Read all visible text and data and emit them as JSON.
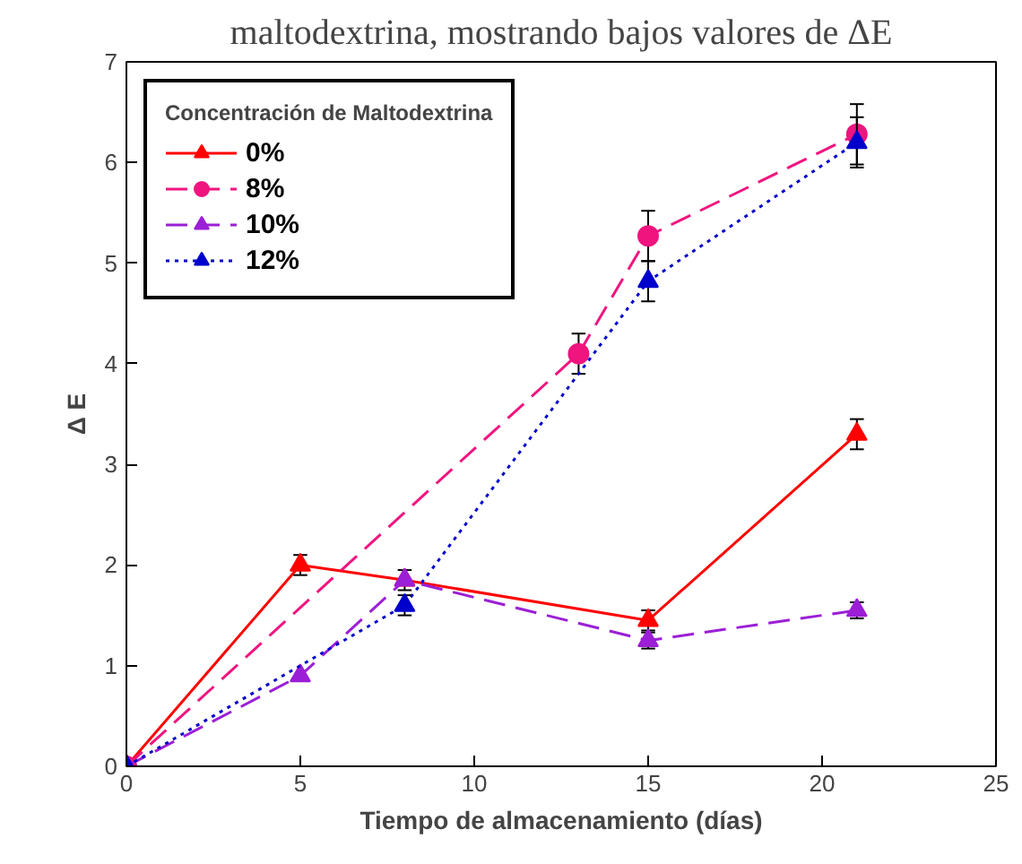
{
  "chart_data": {
    "type": "line",
    "xlabel": "Tiempo de almacenamiento (días)",
    "ylabel": "Δ E",
    "legend_title": "Concentración de Maltodextrina",
    "annotations": [
      "maltodextrina, mostrando bajos valores de ΔE"
    ],
    "xlim": [
      0,
      25
    ],
    "xticks": [
      0,
      5,
      10,
      15,
      20,
      25
    ],
    "ylim": [
      0,
      7
    ],
    "yticks": [
      0,
      1,
      2,
      3,
      4,
      5,
      6,
      7
    ],
    "grid": false,
    "legend": "top left",
    "series": [
      {
        "name": "0%",
        "color": "#ff0000",
        "marker": "triangle",
        "line_style": "solid",
        "x": [
          0,
          5,
          8,
          15,
          21
        ],
        "values": [
          0,
          2.0,
          1.85,
          1.45,
          3.3
        ],
        "errors": [
          null,
          0.1,
          0.1,
          0.1,
          0.15
        ]
      },
      {
        "name": "8%",
        "color": "#f0147f",
        "marker": "circle",
        "line_style": "dashed",
        "x": [
          0,
          13,
          15,
          21
        ],
        "values": [
          0,
          4.1,
          5.27,
          6.28
        ],
        "errors": [
          null,
          0.2,
          0.25,
          0.3
        ]
      },
      {
        "name": "10%",
        "color": "#9b1fd6",
        "marker": "triangle",
        "line_style": "dashed",
        "x": [
          0,
          5,
          8,
          15,
          21
        ],
        "values": [
          0,
          0.9,
          1.85,
          1.25,
          1.55
        ],
        "errors": [
          null,
          null,
          null,
          0.08,
          0.08
        ]
      },
      {
        "name": "12%",
        "color": "#0000cc",
        "marker": "triangle",
        "line_style": "dotted",
        "x": [
          0,
          8,
          15,
          21
        ],
        "values": [
          0,
          1.6,
          4.82,
          6.2
        ],
        "errors": [
          null,
          0.1,
          0.2,
          0.25
        ]
      }
    ]
  }
}
